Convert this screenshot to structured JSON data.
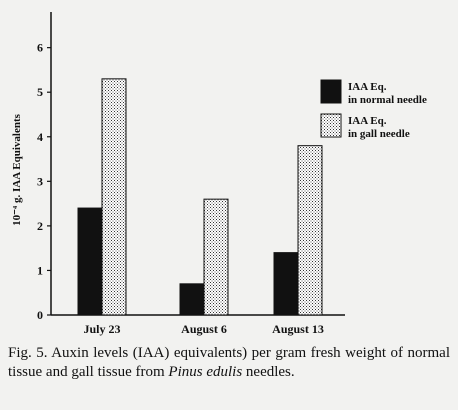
{
  "chart_data": {
    "type": "bar",
    "ylabel": "10⁻⁴ g. IAA Equivalents",
    "ylim": [
      0,
      6.8
    ],
    "yticks": [
      0,
      1,
      2,
      3,
      4,
      5,
      6
    ],
    "categories": [
      "July 23",
      "August 6",
      "August 13"
    ],
    "series": [
      {
        "name": "IAA Eq. in normal needle",
        "name_lines": [
          "IAA Eq.",
          "in normal needle"
        ],
        "color": "#111111",
        "pattern": "solid",
        "values": [
          2.4,
          0.7,
          1.4
        ]
      },
      {
        "name": "IAA Eq. in gall needle",
        "name_lines": [
          "IAA Eq.",
          "in gall needle"
        ],
        "color": "#ffffff",
        "pattern": "stipple",
        "values": [
          5.3,
          2.6,
          3.8
        ]
      }
    ],
    "legend_position": "right",
    "grid": false
  },
  "caption": {
    "prefix": "Fig. 5. Auxin levels (IAA) equivalents) per gram fresh weight of normal tissue and gall tissue from ",
    "species": "Pinus edulis",
    "suffix": " needles."
  }
}
